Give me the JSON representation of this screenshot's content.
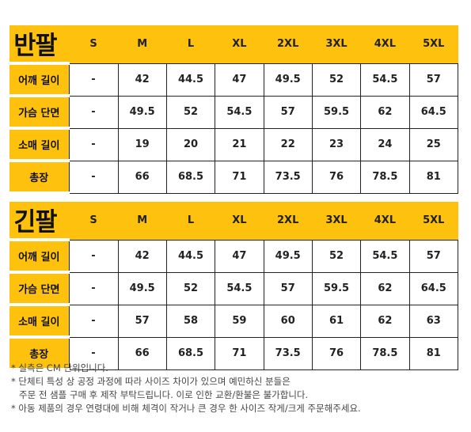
{
  "tables": [
    {
      "title": "반팔",
      "sizes": [
        "S",
        "M",
        "L",
        "XL",
        "2XL",
        "3XL",
        "4XL",
        "5XL"
      ],
      "rows": [
        {
          "label": "어깨 길이",
          "values": [
            "-",
            "42",
            "44.5",
            "47",
            "49.5",
            "52",
            "54.5",
            "57"
          ]
        },
        {
          "label": "가슴 단면",
          "values": [
            "-",
            "49.5",
            "52",
            "54.5",
            "57",
            "59.5",
            "62",
            "64.5"
          ]
        },
        {
          "label": "소매 길이",
          "values": [
            "-",
            "19",
            "20",
            "21",
            "22",
            "23",
            "24",
            "25"
          ]
        },
        {
          "label": "총장",
          "values": [
            "-",
            "66",
            "68.5",
            "71",
            "73.5",
            "76",
            "78.5",
            "81"
          ]
        }
      ]
    },
    {
      "title": "긴팔",
      "sizes": [
        "S",
        "M",
        "L",
        "XL",
        "2XL",
        "3XL",
        "4XL",
        "5XL"
      ],
      "rows": [
        {
          "label": "어깨 길이",
          "values": [
            "-",
            "42",
            "44.5",
            "47",
            "49.5",
            "52",
            "54.5",
            "57"
          ]
        },
        {
          "label": "가슴 단면",
          "values": [
            "-",
            "49.5",
            "52",
            "54.5",
            "57",
            "59.5",
            "62",
            "64.5"
          ]
        },
        {
          "label": "소매 길이",
          "values": [
            "-",
            "57",
            "58",
            "59",
            "60",
            "61",
            "62",
            "63"
          ]
        },
        {
          "label": "총장",
          "values": [
            "-",
            "66",
            "68.5",
            "71",
            "73.5",
            "76",
            "78.5",
            "81"
          ]
        }
      ]
    }
  ],
  "notes": [
    "* 실측은 CM 단위입니다.",
    "* 단체티 특성 상 공정 과정에 따라 사이즈 차이가 있으며 예민하신 분들은",
    "주문 전 샘플 구매 후 제작 부탁드립니다. 이로 인한 교환/환불은 불가합니다.",
    "* 아동 제품의 경우 연령대에 비해 체격이 작거나 큰 경우 한 사이즈 작게/크게 주문해주세요."
  ],
  "colors": {
    "accent": "#fec10e",
    "border": "#222222"
  }
}
